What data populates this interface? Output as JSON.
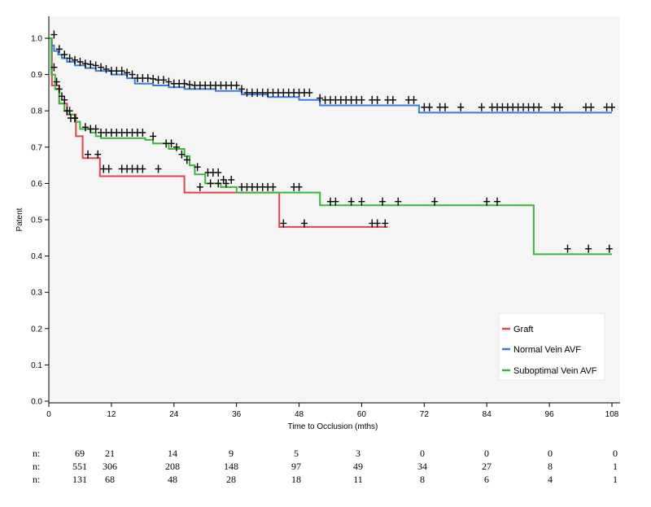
{
  "chart_data": {
    "type": "line",
    "title": "",
    "xlabel": "Time to Occlusion (mths)",
    "ylabel": "Patent",
    "xlim": [
      0,
      108
    ],
    "ylim": [
      0,
      1.0
    ],
    "x_ticks": [
      "0",
      "12",
      "24",
      "36",
      "48",
      "60",
      "72",
      "84",
      "96",
      "108"
    ],
    "y_ticks": [
      "0.0",
      "0.1",
      "0.2",
      "0.3",
      "0.4",
      "0.5",
      "0.6",
      "0.7",
      "0.8",
      "0.9",
      "1.0"
    ],
    "grid": false,
    "legend_position": "bottom-right",
    "series": [
      {
        "name": "Graft",
        "color": "#e0444f",
        "steps": [
          [
            0,
            1.0
          ],
          [
            0.6,
            0.87
          ],
          [
            2.0,
            0.82
          ],
          [
            3.5,
            0.79
          ],
          [
            5.2,
            0.73
          ],
          [
            6.5,
            0.67
          ],
          [
            9.8,
            0.62
          ],
          [
            26,
            0.575
          ],
          [
            44.2,
            0.48
          ],
          [
            65,
            0.48
          ]
        ],
        "censored": [
          [
            1.5,
            0.88
          ],
          [
            2.5,
            0.84
          ],
          [
            3.5,
            0.8
          ],
          [
            4.2,
            0.78
          ],
          [
            7.5,
            0.68
          ],
          [
            9.4,
            0.68
          ],
          [
            10.5,
            0.64
          ],
          [
            11.5,
            0.64
          ],
          [
            14,
            0.64
          ],
          [
            15,
            0.64
          ],
          [
            16,
            0.64
          ],
          [
            17,
            0.64
          ],
          [
            18,
            0.64
          ],
          [
            21,
            0.64
          ],
          [
            29,
            0.59
          ],
          [
            31,
            0.6
          ],
          [
            32.5,
            0.6
          ],
          [
            34,
            0.6
          ],
          [
            45,
            0.49
          ],
          [
            49,
            0.49
          ],
          [
            62,
            0.49
          ],
          [
            63,
            0.49
          ],
          [
            64.5,
            0.49
          ]
        ]
      },
      {
        "name": "Normal Vein AVF",
        "color": "#3a7be0",
        "steps": [
          [
            0,
            1.0
          ],
          [
            0.5,
            0.98
          ],
          [
            1,
            0.965
          ],
          [
            1.8,
            0.955
          ],
          [
            2.5,
            0.945
          ],
          [
            3.5,
            0.935
          ],
          [
            5,
            0.925
          ],
          [
            7,
            0.918
          ],
          [
            9,
            0.91
          ],
          [
            12,
            0.9
          ],
          [
            15,
            0.89
          ],
          [
            16.5,
            0.875
          ],
          [
            20,
            0.87
          ],
          [
            23,
            0.865
          ],
          [
            26,
            0.86
          ],
          [
            32,
            0.855
          ],
          [
            37,
            0.845
          ],
          [
            42,
            0.838
          ],
          [
            48,
            0.83
          ],
          [
            52,
            0.815
          ],
          [
            71,
            0.795
          ],
          [
            108,
            0.795
          ]
        ],
        "censored": [
          [
            1,
            1.01
          ],
          [
            2,
            0.97
          ],
          [
            3,
            0.955
          ],
          [
            4,
            0.945
          ],
          [
            5,
            0.94
          ],
          [
            6,
            0.935
          ],
          [
            7,
            0.93
          ],
          [
            8,
            0.928
          ],
          [
            9,
            0.925
          ],
          [
            10,
            0.92
          ],
          [
            11,
            0.915
          ],
          [
            12,
            0.91
          ],
          [
            13,
            0.91
          ],
          [
            14,
            0.91
          ],
          [
            15,
            0.905
          ],
          [
            16,
            0.9
          ],
          [
            17,
            0.89
          ],
          [
            18,
            0.89
          ],
          [
            19,
            0.89
          ],
          [
            20,
            0.888
          ],
          [
            21,
            0.885
          ],
          [
            22,
            0.885
          ],
          [
            23,
            0.88
          ],
          [
            24,
            0.875
          ],
          [
            25,
            0.875
          ],
          [
            26,
            0.875
          ],
          [
            27,
            0.872
          ],
          [
            28,
            0.87
          ],
          [
            29,
            0.87
          ],
          [
            30,
            0.87
          ],
          [
            31,
            0.87
          ],
          [
            32,
            0.87
          ],
          [
            33,
            0.87
          ],
          [
            34,
            0.87
          ],
          [
            35,
            0.87
          ],
          [
            36,
            0.87
          ],
          [
            37,
            0.86
          ],
          [
            38,
            0.85
          ],
          [
            39,
            0.85
          ],
          [
            40,
            0.85
          ],
          [
            41,
            0.85
          ],
          [
            42,
            0.85
          ],
          [
            43,
            0.85
          ],
          [
            44,
            0.85
          ],
          [
            45,
            0.85
          ],
          [
            46,
            0.85
          ],
          [
            47,
            0.85
          ],
          [
            48,
            0.85
          ],
          [
            49,
            0.85
          ],
          [
            50,
            0.85
          ],
          [
            52,
            0.835
          ],
          [
            53,
            0.83
          ],
          [
            54,
            0.83
          ],
          [
            55,
            0.83
          ],
          [
            56,
            0.83
          ],
          [
            57,
            0.83
          ],
          [
            58,
            0.83
          ],
          [
            59,
            0.83
          ],
          [
            60,
            0.83
          ],
          [
            62,
            0.83
          ],
          [
            63,
            0.83
          ],
          [
            65,
            0.83
          ],
          [
            66,
            0.83
          ],
          [
            69,
            0.83
          ],
          [
            70,
            0.83
          ],
          [
            72,
            0.81
          ],
          [
            73,
            0.81
          ],
          [
            75,
            0.81
          ],
          [
            76,
            0.81
          ],
          [
            79,
            0.81
          ],
          [
            83,
            0.81
          ],
          [
            85,
            0.81
          ],
          [
            86,
            0.81
          ],
          [
            87,
            0.81
          ],
          [
            88,
            0.81
          ],
          [
            89,
            0.81
          ],
          [
            90,
            0.81
          ],
          [
            91,
            0.81
          ],
          [
            92,
            0.81
          ],
          [
            93,
            0.81
          ],
          [
            94,
            0.81
          ],
          [
            97,
            0.81
          ],
          [
            98,
            0.81
          ],
          [
            103,
            0.81
          ],
          [
            104,
            0.81
          ],
          [
            107,
            0.81
          ],
          [
            108,
            0.81
          ]
        ]
      },
      {
        "name": "Suboptimal Vein AVF",
        "color": "#3cb53a",
        "steps": [
          [
            0,
            1.0
          ],
          [
            0.5,
            0.9
          ],
          [
            1.2,
            0.86
          ],
          [
            2,
            0.82
          ],
          [
            3,
            0.8
          ],
          [
            4,
            0.79
          ],
          [
            5,
            0.77
          ],
          [
            6,
            0.75
          ],
          [
            8,
            0.74
          ],
          [
            9,
            0.73
          ],
          [
            10,
            0.725
          ],
          [
            18.5,
            0.72
          ],
          [
            20,
            0.71
          ],
          [
            23,
            0.695
          ],
          [
            26,
            0.675
          ],
          [
            27,
            0.65
          ],
          [
            28,
            0.625
          ],
          [
            30,
            0.6
          ],
          [
            33,
            0.59
          ],
          [
            36,
            0.575
          ],
          [
            52,
            0.54
          ],
          [
            93,
            0.405
          ],
          [
            108,
            0.405
          ]
        ],
        "censored": [
          [
            1,
            0.92
          ],
          [
            2,
            0.86
          ],
          [
            3,
            0.83
          ],
          [
            4,
            0.8
          ],
          [
            5,
            0.78
          ],
          [
            7,
            0.755
          ],
          [
            8,
            0.75
          ],
          [
            9,
            0.75
          ],
          [
            10,
            0.74
          ],
          [
            11,
            0.74
          ],
          [
            12,
            0.74
          ],
          [
            13,
            0.74
          ],
          [
            14,
            0.74
          ],
          [
            15,
            0.74
          ],
          [
            16,
            0.74
          ],
          [
            17,
            0.74
          ],
          [
            18,
            0.74
          ],
          [
            20,
            0.73
          ],
          [
            22.5,
            0.71
          ],
          [
            23.5,
            0.71
          ],
          [
            24.5,
            0.7
          ],
          [
            25.5,
            0.68
          ],
          [
            26.5,
            0.665
          ],
          [
            28.5,
            0.645
          ],
          [
            30.5,
            0.63
          ],
          [
            31.5,
            0.63
          ],
          [
            32.5,
            0.63
          ],
          [
            33.5,
            0.61
          ],
          [
            35,
            0.61
          ],
          [
            37,
            0.59
          ],
          [
            38,
            0.59
          ],
          [
            39,
            0.59
          ],
          [
            40,
            0.59
          ],
          [
            41,
            0.59
          ],
          [
            42,
            0.59
          ],
          [
            43,
            0.59
          ],
          [
            47,
            0.59
          ],
          [
            48,
            0.59
          ],
          [
            54,
            0.55
          ],
          [
            55,
            0.55
          ],
          [
            58,
            0.55
          ],
          [
            60,
            0.55
          ],
          [
            64,
            0.55
          ],
          [
            67,
            0.55
          ],
          [
            74,
            0.55
          ],
          [
            84,
            0.55
          ],
          [
            86,
            0.55
          ],
          [
            99.5,
            0.42
          ],
          [
            103.5,
            0.42
          ],
          [
            107.5,
            0.42
          ]
        ]
      }
    ],
    "risk_table": {
      "prefix": "n:",
      "times": [
        0,
        12,
        24,
        36,
        48,
        60,
        72,
        84,
        96,
        108
      ],
      "rows": [
        [
          "69",
          "21",
          "14",
          "9",
          "5",
          "3",
          "0",
          "0",
          "0",
          "0"
        ],
        [
          "551",
          "306",
          "208",
          "148",
          "97",
          "49",
          "34",
          "27",
          "8",
          "1"
        ],
        [
          "131",
          "68",
          "48",
          "28",
          "18",
          "11",
          "8",
          "6",
          "4",
          "1"
        ]
      ]
    }
  }
}
